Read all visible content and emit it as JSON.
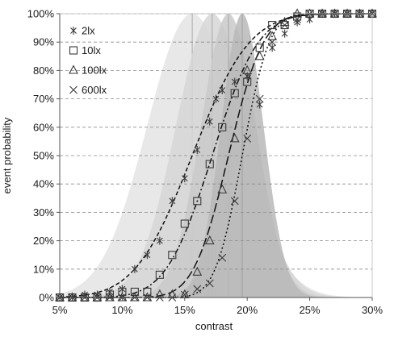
{
  "chart_data": {
    "type": "scatter",
    "xlabel": "contrast",
    "ylabel": "event probability",
    "x_unit": "%",
    "xlim": [
      5,
      30
    ],
    "ylim": [
      0,
      100
    ],
    "x_ticks": [
      "5%",
      "10%",
      "15%",
      "20%",
      "25%",
      "30%"
    ],
    "y_ticks": [
      "0%",
      "10%",
      "20%",
      "30%",
      "40%",
      "50%",
      "60%",
      "70%",
      "80%",
      "90%",
      "100%"
    ],
    "grid": "horizontal-dashed",
    "legend_position": "top-left",
    "background_distributions": [
      {
        "mean": 15.6,
        "sd": 3.6,
        "color": "#e4e4e4"
      },
      {
        "mean": 17.2,
        "sd": 2.9,
        "color": "#d6d6d6"
      },
      {
        "mean": 18.5,
        "sd": 2.2,
        "color": "#c9c9c9"
      },
      {
        "mean": 19.6,
        "sd": 1.7,
        "color": "#b8b8b8"
      }
    ],
    "series": [
      {
        "name": "2lx",
        "marker": "asterisk",
        "fit": {
          "mu": 15.6,
          "sigma": 3.6,
          "dash": "5,3"
        },
        "x": [
          5,
          6,
          7,
          8,
          9,
          10,
          11,
          12,
          13,
          14,
          15,
          16,
          17,
          17.5,
          18,
          19,
          20,
          21,
          22,
          23,
          24,
          25,
          26,
          27,
          28,
          29,
          30
        ],
        "y": [
          0,
          0,
          1,
          1,
          2,
          3,
          10,
          15,
          20,
          34,
          42,
          52,
          62,
          70,
          73,
          76,
          78,
          68,
          88,
          93,
          97,
          98,
          100,
          100,
          100,
          100,
          100
        ]
      },
      {
        "name": "10lx",
        "marker": "square",
        "fit": {
          "mu": 17.2,
          "sigma": 2.9,
          "dash": "7,3,2,3"
        },
        "x": [
          5,
          6,
          7,
          8,
          9,
          10,
          11,
          12,
          13,
          14,
          15,
          16,
          17,
          18,
          19,
          20,
          21,
          22,
          23,
          24,
          25,
          26,
          27,
          28,
          29,
          30
        ],
        "y": [
          0,
          0,
          0,
          0,
          1,
          2,
          2,
          2,
          8,
          15,
          26,
          34,
          47,
          60,
          72,
          76,
          88,
          96,
          96,
          99,
          100,
          100,
          100,
          100,
          100,
          100
        ]
      },
      {
        "name": "100lx",
        "marker": "triangle",
        "fit": {
          "mu": 18.5,
          "sigma": 2.2,
          "dash": "11,4"
        },
        "x": [
          5,
          6,
          7,
          8,
          9,
          10,
          11,
          12,
          13,
          14,
          15,
          16,
          17,
          18,
          19,
          20,
          21,
          22,
          23,
          24,
          25,
          26,
          27,
          28,
          29,
          30
        ],
        "y": [
          0,
          0,
          0,
          0,
          0,
          0,
          0,
          0,
          1,
          1,
          1,
          9,
          20,
          38,
          56,
          80,
          85,
          92,
          97,
          100,
          100,
          100,
          100,
          100,
          100,
          100
        ]
      },
      {
        "name": "600lx",
        "marker": "x",
        "fit": {
          "mu": 19.6,
          "sigma": 1.7,
          "dash": "2,3"
        },
        "x": [
          5,
          6,
          7,
          8,
          9,
          10,
          11,
          12,
          13,
          14,
          15,
          16,
          17,
          18,
          19,
          20,
          21,
          22,
          23,
          24,
          25,
          26,
          27,
          28,
          29,
          30
        ],
        "y": [
          0,
          0,
          0,
          0,
          0,
          0,
          0,
          0,
          0,
          0,
          1,
          3,
          5,
          14,
          34,
          56,
          70,
          90,
          96,
          98,
          100,
          100,
          100,
          100,
          100,
          100
        ]
      }
    ]
  }
}
